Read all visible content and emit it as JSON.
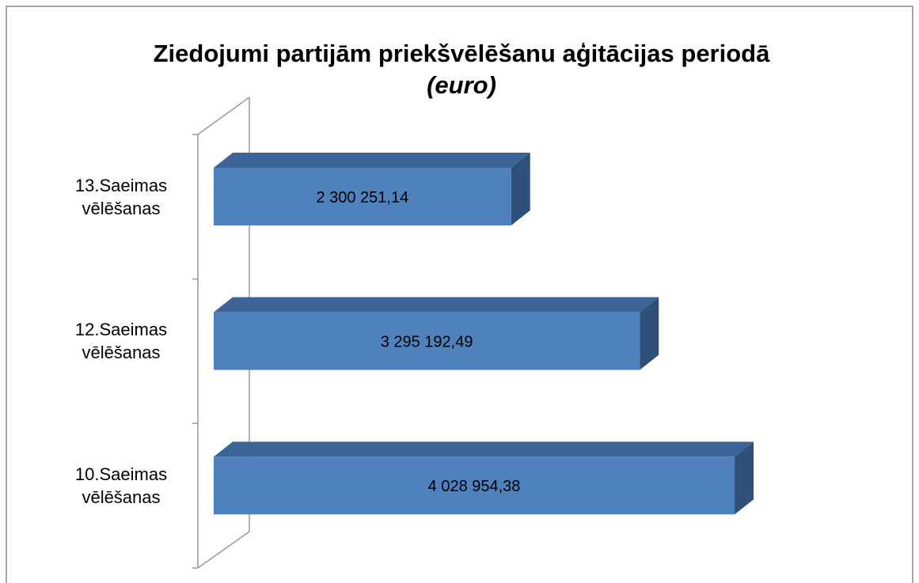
{
  "chart_data": {
    "type": "bar3d_horizontal",
    "title": "Ziedojumi partijām priekšvēlēšanu aģitācijas periodā",
    "subtitle": "(euro)",
    "categories": [
      "13.Saeimas vēlēšanas",
      "12.Saeimas vēlēšanas",
      "10.Saeimas vēlēšanas"
    ],
    "values": [
      2300251.14,
      3295192.49,
      4028954.38
    ],
    "value_labels": [
      "2 300 251,14",
      "3 295 192,49",
      "4 028 954,38"
    ],
    "color": "#4f81bd",
    "xlim": [
      0,
      4500000
    ]
  }
}
